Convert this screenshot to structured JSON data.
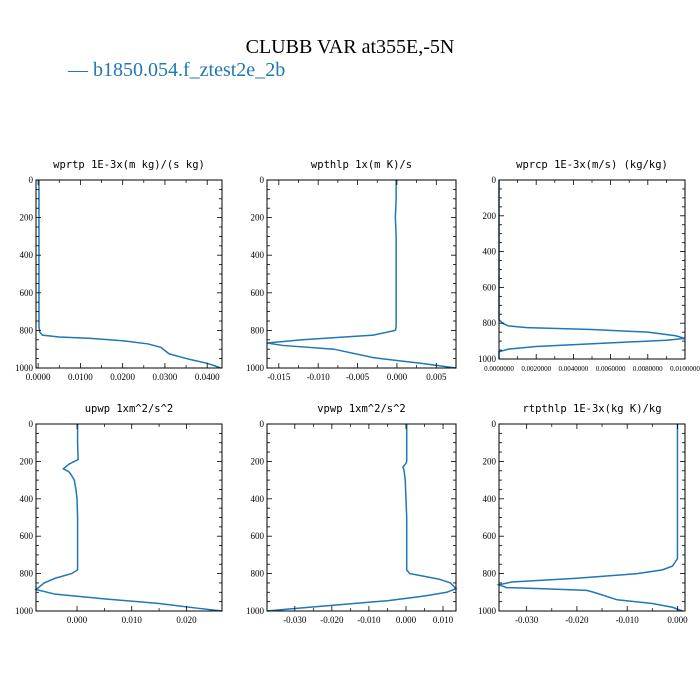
{
  "title": "CLUBB VAR at355E,-5N",
  "legend": {
    "label": "b1850.054.f_ztest2e_2b",
    "marker": "—",
    "color": "#1f77b4"
  },
  "chart_data": [
    {
      "type": "line",
      "title": "wprtp  1E-3x(m kg)/(s kg)",
      "xlim": [
        -0.0005,
        0.0435
      ],
      "ylim": [
        1000,
        0
      ],
      "xticks": [
        0.0,
        0.01,
        0.02,
        0.03,
        0.04
      ],
      "xticklabels": [
        "0.0000",
        "0.0100",
        "0.0200",
        "0.0300",
        "0.0400"
      ],
      "yticks": [
        0,
        200,
        400,
        600,
        800,
        1000
      ],
      "series": [
        {
          "points": [
            [
              0.0002,
              0
            ],
            [
              0.0002,
              200
            ],
            [
              0.0002,
              400
            ],
            [
              0.0002,
              600
            ],
            [
              0.0002,
              780
            ],
            [
              0.0004,
              810
            ],
            [
              0.001,
              825
            ],
            [
              0.005,
              835
            ],
            [
              0.012,
              842
            ],
            [
              0.02,
              855
            ],
            [
              0.026,
              872
            ],
            [
              0.029,
              890
            ],
            [
              0.031,
              925
            ],
            [
              0.036,
              955
            ],
            [
              0.04,
              975
            ],
            [
              0.042,
              990
            ],
            [
              0.0432,
              1000
            ]
          ]
        }
      ]
    },
    {
      "type": "line",
      "title": "wpthlp  1x(m K)/s",
      "xlim": [
        -0.0165,
        0.0075
      ],
      "ylim": [
        1000,
        0
      ],
      "xticks": [
        -0.015,
        -0.01,
        -0.005,
        0.0,
        0.005
      ],
      "xticklabels": [
        "-0.015",
        "-0.010",
        "-0.005",
        "0.000",
        "0.005"
      ],
      "yticks": [
        0,
        200,
        400,
        600,
        800,
        1000
      ],
      "series": [
        {
          "points": [
            [
              -0.0001,
              0
            ],
            [
              -0.0001,
              100
            ],
            [
              -0.0002,
              200
            ],
            [
              -0.0001,
              300
            ],
            [
              -0.0001,
              400
            ],
            [
              -0.0001,
              500
            ],
            [
              -0.0001,
              600
            ],
            [
              -0.0001,
              700
            ],
            [
              -0.0001,
              780
            ],
            [
              -0.0002,
              800
            ],
            [
              -0.003,
              825
            ],
            [
              -0.012,
              850
            ],
            [
              -0.0165,
              867
            ],
            [
              -0.0145,
              880
            ],
            [
              -0.008,
              900
            ],
            [
              -0.003,
              945
            ],
            [
              0.003,
              975
            ],
            [
              0.0075,
              1000
            ]
          ]
        }
      ]
    },
    {
      "type": "line",
      "title": "wprcp  1E-3x(m/s) (kg/kg)",
      "xlim": [
        0.0,
        0.01
      ],
      "ylim": [
        1000,
        0
      ],
      "xticks": [
        0.0,
        0.002,
        0.004,
        0.006,
        0.008,
        0.01
      ],
      "xticklabels": [
        "0.0000000",
        "0.0020000",
        "0.0040000",
        "0.0060000",
        "0.0080000",
        "0.0100000"
      ],
      "yticks": [
        0,
        200,
        400,
        600,
        800,
        1000
      ],
      "series": [
        {
          "points": [
            [
              0.0,
              0
            ],
            [
              0.0,
              400
            ],
            [
              0.0,
              780
            ],
            [
              0.0002,
              800
            ],
            [
              0.0005,
              815
            ],
            [
              0.0015,
              825
            ],
            [
              0.005,
              835
            ],
            [
              0.008,
              850
            ],
            [
              0.0095,
              870
            ],
            [
              0.01,
              885
            ],
            [
              0.009,
              895
            ],
            [
              0.006,
              910
            ],
            [
              0.002,
              930
            ],
            [
              0.0005,
              945
            ],
            [
              0.0,
              960
            ],
            [
              0.0,
              1000
            ]
          ]
        }
      ]
    },
    {
      "type": "line",
      "title": "upwp  1xm^2/s^2",
      "xlim": [
        -0.0075,
        0.0265
      ],
      "ylim": [
        1000,
        0
      ],
      "xticks": [
        0.0,
        0.01,
        0.02
      ],
      "xticklabels": [
        "0.000",
        "0.010",
        "0.020"
      ],
      "yticks": [
        0,
        200,
        400,
        600,
        800,
        1000
      ],
      "series": [
        {
          "points": [
            [
              0.0001,
              0
            ],
            [
              0.0001,
              100
            ],
            [
              0.0002,
              190
            ],
            [
              -0.0005,
              200
            ],
            [
              -0.0015,
              215
            ],
            [
              -0.0025,
              240
            ],
            [
              -0.0015,
              255
            ],
            [
              -0.001,
              275
            ],
            [
              -0.0005,
              300
            ],
            [
              -0.0002,
              350
            ],
            [
              0.0,
              400
            ],
            [
              0.0001,
              500
            ],
            [
              0.0001,
              600
            ],
            [
              0.0001,
              700
            ],
            [
              0.0001,
              780
            ],
            [
              -0.001,
              800
            ],
            [
              -0.004,
              825
            ],
            [
              -0.006,
              850
            ],
            [
              -0.0075,
              885
            ],
            [
              -0.004,
              910
            ],
            [
              0.005,
              935
            ],
            [
              0.015,
              960
            ],
            [
              0.022,
              985
            ],
            [
              0.0265,
              1000
            ]
          ]
        }
      ]
    },
    {
      "type": "line",
      "title": "vpwp  1xm^2/s^2",
      "xlim": [
        -0.0375,
        0.0135
      ],
      "ylim": [
        1000,
        0
      ],
      "xticks": [
        -0.03,
        -0.02,
        -0.01,
        0.0,
        0.01
      ],
      "xticklabels": [
        "-0.030",
        "-0.020",
        "-0.010",
        "0.000",
        "0.010"
      ],
      "yticks": [
        0,
        200,
        400,
        600,
        800,
        1000
      ],
      "series": [
        {
          "points": [
            [
              0.0002,
              0
            ],
            [
              0.0002,
              100
            ],
            [
              0.0002,
              200
            ],
            [
              0.0,
              210
            ],
            [
              -0.0008,
              230
            ],
            [
              -0.0005,
              250
            ],
            [
              -0.0002,
              300
            ],
            [
              0.0,
              400
            ],
            [
              0.0002,
              500
            ],
            [
              0.0002,
              600
            ],
            [
              0.0002,
              700
            ],
            [
              0.0002,
              780
            ],
            [
              0.001,
              800
            ],
            [
              0.005,
              815
            ],
            [
              0.009,
              830
            ],
            [
              0.012,
              850
            ],
            [
              0.0135,
              880
            ],
            [
              0.011,
              900
            ],
            [
              0.005,
              920
            ],
            [
              -0.005,
              945
            ],
            [
              -0.02,
              970
            ],
            [
              -0.032,
              990
            ],
            [
              -0.0375,
              1000
            ]
          ]
        }
      ]
    },
    {
      "type": "line",
      "title": "rtpthlp  1E-3x(kg K)/kg",
      "xlim": [
        -0.0355,
        0.0015
      ],
      "ylim": [
        1000,
        0
      ],
      "xticks": [
        -0.03,
        -0.02,
        -0.01,
        0.0
      ],
      "xticklabels": [
        "-0.030",
        "-0.020",
        "-0.010",
        "0.000"
      ],
      "yticks": [
        0,
        200,
        400,
        600,
        800,
        1000
      ],
      "series": [
        {
          "points": [
            [
              0.0,
              0
            ],
            [
              0.0,
              200
            ],
            [
              0.0,
              400
            ],
            [
              0.0,
              600
            ],
            [
              0.0,
              720
            ],
            [
              -0.001,
              760
            ],
            [
              -0.003,
              780
            ],
            [
              -0.008,
              800
            ],
            [
              -0.02,
              825
            ],
            [
              -0.033,
              845
            ],
            [
              -0.0355,
              860
            ],
            [
              -0.034,
              875
            ],
            [
              -0.028,
              880
            ],
            [
              -0.018,
              890
            ],
            [
              -0.016,
              905
            ],
            [
              -0.012,
              940
            ],
            [
              -0.005,
              960
            ],
            [
              -0.001,
              980
            ],
            [
              0.001,
              1000
            ]
          ]
        }
      ]
    }
  ]
}
